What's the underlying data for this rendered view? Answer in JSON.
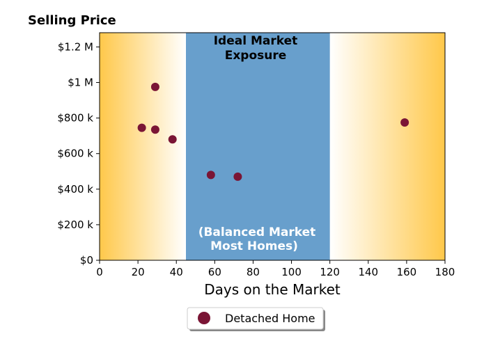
{
  "chart_data": {
    "type": "scatter",
    "title": "Selling Price",
    "xlabel": "Days on the Market",
    "ylabel": "",
    "xlim": [
      0,
      180
    ],
    "ylim": [
      0,
      1280000
    ],
    "xticks": [
      0,
      20,
      40,
      60,
      80,
      100,
      120,
      140,
      160,
      180
    ],
    "xtick_labels": [
      "0",
      "20",
      "40",
      "60",
      "80",
      "100",
      "120",
      "140",
      "160",
      "180"
    ],
    "yticks": [
      0,
      200000,
      400000,
      600000,
      800000,
      1000000,
      1200000
    ],
    "ytick_labels": [
      "$0",
      "$200 k",
      "$400 k",
      "$600 k",
      "$800 k",
      "$1 M",
      "$1.2 M"
    ],
    "grid": false,
    "legend_position": "bottom-center",
    "series": [
      {
        "name": "Detached Home",
        "color": "#7a1535",
        "points": [
          {
            "x": 22,
            "y": 745000
          },
          {
            "x": 29,
            "y": 975000
          },
          {
            "x": 29,
            "y": 735000
          },
          {
            "x": 38,
            "y": 680000
          },
          {
            "x": 58,
            "y": 480000
          },
          {
            "x": 72,
            "y": 470000
          },
          {
            "x": 159,
            "y": 775000
          }
        ]
      }
    ],
    "bands": [
      {
        "x_from": 45,
        "x_to": 120,
        "color": "#689fcc"
      }
    ],
    "gradient_color": "#ffc84a",
    "annotations": {
      "ideal_line1": "Ideal Market",
      "ideal_line2": "Exposure",
      "balanced_line1": "(Balanced Market",
      "balanced_line2": "Most Homes)"
    }
  }
}
